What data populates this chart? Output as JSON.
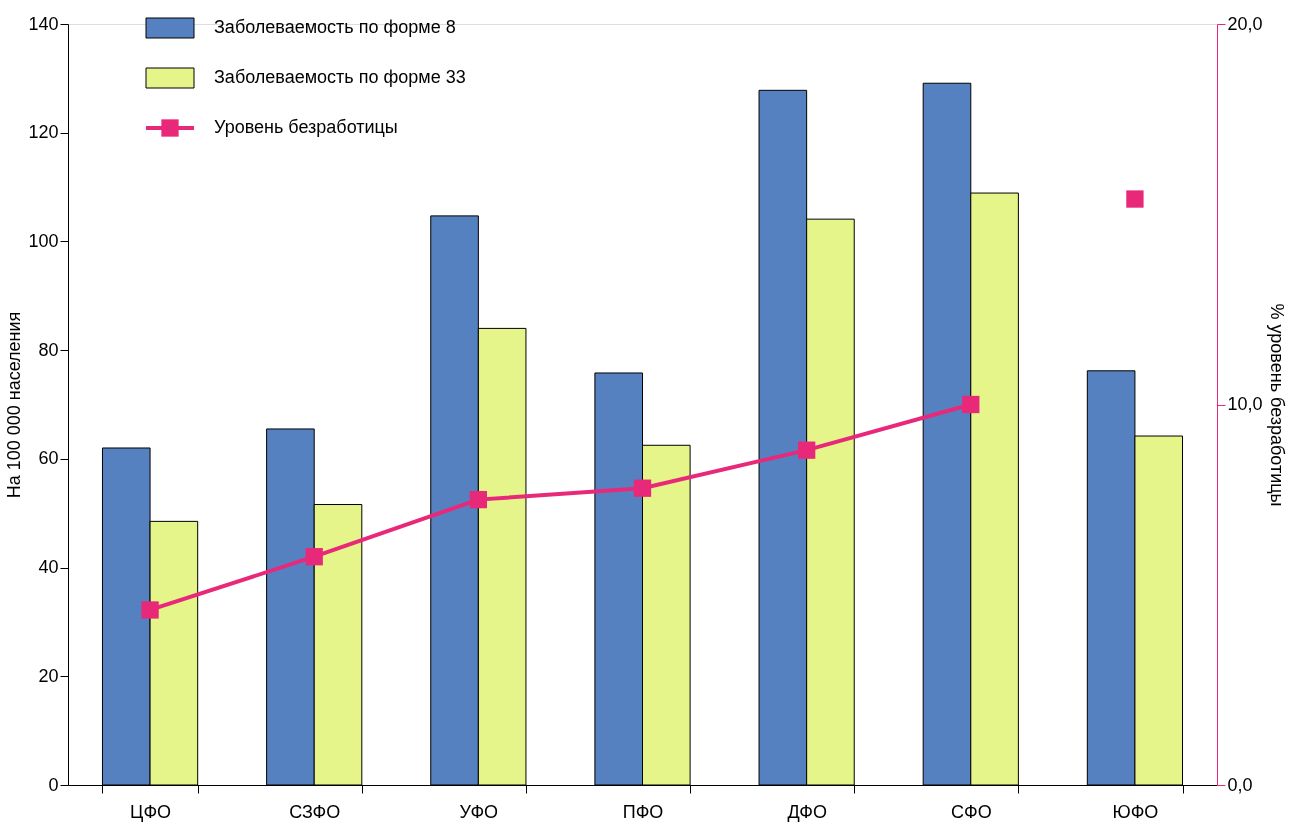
{
  "chart_data": {
    "type": "bar",
    "categories": [
      "ЦФО",
      "СЗФО",
      "УФО",
      "ПФО",
      "ДФО",
      "СФО",
      "ЮФО"
    ],
    "series": [
      {
        "name": "Заболеваемость по форме 8",
        "color": "#5581c1",
        "values": [
          62.0,
          65.5,
          104.7,
          75.8,
          127.8,
          129.1,
          76.2
        ]
      },
      {
        "name": "Заболеваемость по форме 33",
        "color": "#e6f58a",
        "values": [
          48.5,
          51.6,
          84.0,
          62.5,
          104.1,
          108.9,
          64.2
        ]
      },
      {
        "name": "Уровень безработицы",
        "type": "line",
        "axis": "y2",
        "color": "#e8297a",
        "marker": "square",
        "values": [
          4.6,
          6.0,
          7.5,
          7.8,
          8.8,
          10.0,
          null
        ]
      },
      {
        "type": "scatter",
        "axis": "y2",
        "color": "#e8297a",
        "marker": "square",
        "values": [
          null,
          null,
          null,
          null,
          null,
          null,
          15.4
        ]
      }
    ],
    "ylabel": "На 100 000 населения",
    "y2label": "% уровень безработицы",
    "ylim": [
      0,
      140
    ],
    "yticks": [
      0,
      20,
      40,
      60,
      80,
      100,
      120,
      140
    ],
    "y2lim": [
      0,
      20
    ],
    "y2ticks": [
      {
        "value": 0,
        "label": "0,0"
      },
      {
        "value": 10,
        "label": "10,0"
      },
      {
        "value": 20,
        "label": "20,0"
      }
    ],
    "legend": "top left",
    "grid": false
  }
}
